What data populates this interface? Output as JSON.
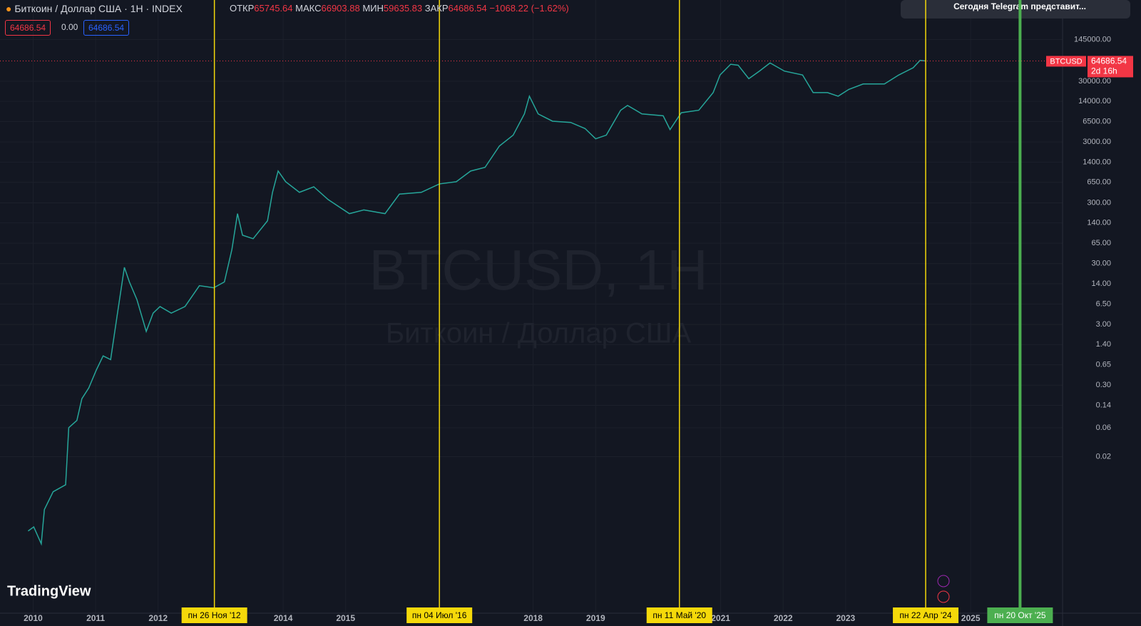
{
  "header": {
    "symbol": "Биткоин / Доллар США · 1H · INDEX",
    "open_label": "ОТКР",
    "open": "65745.64",
    "high_label": "МАКС",
    "high": "66903.88",
    "low_label": "МИН",
    "low": "59635.83",
    "close_label": "ЗАКР",
    "close": "64686.54",
    "change": "−1068.22 (−1.62%)",
    "bid": "64686.54",
    "spread": "0.00",
    "ask": "64686.54"
  },
  "notification": "Сегодня Telegram представит...",
  "logo": "TradingView",
  "watermark": {
    "title": "BTCUSD, 1H",
    "subtitle": "Биткоин / Доллар США"
  },
  "chart_data": {
    "type": "line",
    "log_scale": true,
    "grid": true,
    "x": [
      2009.92,
      2010.01,
      2010.13,
      2010.18,
      2010.32,
      2010.52,
      2010.57,
      2010.7,
      2010.78,
      2010.89,
      2011.01,
      2011.12,
      2011.24,
      2011.35,
      2011.46,
      2011.54,
      2011.66,
      2011.81,
      2011.92,
      2012.03,
      2012.21,
      2012.43,
      2012.66,
      2012.89,
      2013.06,
      2013.18,
      2013.27,
      2013.35,
      2013.52,
      2013.75,
      2013.83,
      2013.92,
      2014.04,
      2014.26,
      2014.49,
      2014.72,
      2015.06,
      2015.29,
      2015.63,
      2015.86,
      2016.21,
      2016.5,
      2016.77,
      2017.0,
      2017.23,
      2017.46,
      2017.68,
      2017.86,
      2017.94,
      2018.08,
      2018.31,
      2018.6,
      2018.83,
      2019.0,
      2019.17,
      2019.4,
      2019.51,
      2019.74,
      2020.08,
      2020.19,
      2020.37,
      2020.65,
      2020.88,
      2020.99,
      2021.16,
      2021.28,
      2021.45,
      2021.62,
      2021.79,
      2022.02,
      2022.31,
      2022.48,
      2022.71,
      2022.88,
      2023.05,
      2023.28,
      2023.62,
      2023.85,
      2024.08,
      2024.19,
      2024.28
    ],
    "series": [
      {
        "name": "BTCUSD",
        "color": "#26a69a",
        "values": [
          0.0012,
          0.0014,
          0.00074,
          0.0027,
          0.0053,
          0.0069,
          0.06,
          0.079,
          0.18,
          0.27,
          0.53,
          0.91,
          0.79,
          4.6,
          26,
          15,
          7.7,
          2.3,
          4.6,
          5.9,
          4.6,
          5.9,
          13,
          12,
          15,
          51,
          199,
          88,
          77,
          152,
          446,
          1000,
          667,
          446,
          550,
          339,
          199,
          229,
          199,
          417,
          446,
          614,
          667,
          1000,
          1148,
          2580,
          3890,
          8700,
          17000,
          8700,
          6600,
          6300,
          5000,
          3390,
          3890,
          10000,
          12000,
          8700,
          8100,
          4800,
          9100,
          10000,
          19500,
          38000,
          57000,
          55000,
          33000,
          44000,
          60000,
          44000,
          38000,
          19500,
          19500,
          17000,
          22000,
          27000,
          27000,
          38000,
          50000,
          66000,
          64686.54
        ]
      }
    ],
    "xlim": [
      2009.47,
      2026.47
    ],
    "xticks": [
      2010,
      2011,
      2012,
      2014,
      2015,
      2018,
      2019,
      2021,
      2022,
      2023,
      2025
    ],
    "ylim": [
      0.00012,
      650000
    ],
    "yticks": [
      0.02,
      0.06,
      0.14,
      {
        "value": 0.3,
        "label": "0.30"
      },
      0.65,
      {
        "value": 1.4,
        "label": "1.40"
      },
      {
        "value": 3,
        "label": "3.00"
      },
      {
        "value": 6.5,
        "label": "6.50"
      },
      {
        "value": 14,
        "label": "14.00"
      },
      {
        "value": 30,
        "label": "30.00"
      },
      {
        "value": 65,
        "label": "65.00"
      },
      {
        "value": 140,
        "label": "140.00"
      },
      {
        "value": 300,
        "label": "300.00"
      },
      {
        "value": 650,
        "label": "650.00"
      },
      {
        "value": 1400,
        "label": "1400.00"
      },
      {
        "value": 3000,
        "label": "3000.00"
      },
      {
        "value": 6500,
        "label": "6500.00"
      },
      {
        "value": 14000,
        "label": "14000.00"
      },
      {
        "value": 30000,
        "label": "30000.00"
      },
      {
        "value": 145000,
        "label": "145000.00"
      }
    ],
    "last_price": {
      "value": 64686.54,
      "label": "64686.54",
      "countdown": "2d 16h"
    },
    "markers": [
      {
        "x": 2012.9,
        "label": "пн 26 Ноя '12",
        "color": "#f5d90a"
      },
      {
        "x": 2016.5,
        "label": "пн 04 Июл '16",
        "color": "#f5d90a"
      },
      {
        "x": 2020.34,
        "label": "пн 11 Май '20",
        "color": "#f5d90a"
      },
      {
        "x": 2024.28,
        "label": "пн 22 Апр '24",
        "color": "#f5d90a"
      },
      {
        "x": 2025.79,
        "label": "пн 20 Окт '25",
        "color": "#4caf50"
      }
    ]
  }
}
